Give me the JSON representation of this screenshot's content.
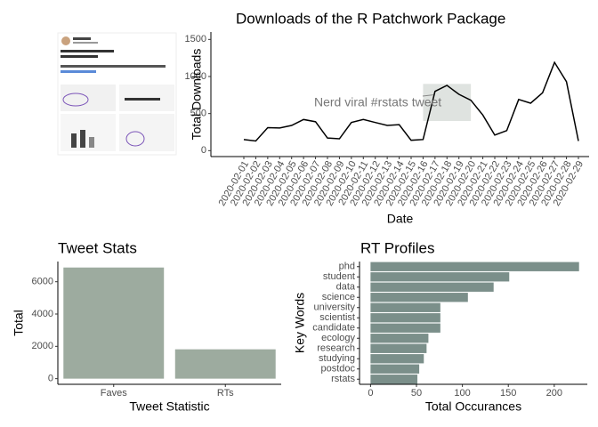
{
  "chart_data": [
    {
      "type": "line",
      "title": "Downloads of the R Patchwork Package",
      "xlabel": "Date",
      "ylabel": "Total Downloads",
      "x": [
        "2020-02-01",
        "2020-02-02",
        "2020-02-03",
        "2020-02-04",
        "2020-02-05",
        "2020-02-06",
        "2020-02-07",
        "2020-02-08",
        "2020-02-09",
        "2020-02-10",
        "2020-02-11",
        "2020-02-12",
        "2020-02-13",
        "2020-02-14",
        "2020-02-15",
        "2020-02-16",
        "2020-02-17",
        "2020-02-18",
        "2020-02-19",
        "2020-02-20",
        "2020-02-21",
        "2020-02-22",
        "2020-02-23",
        "2020-02-24",
        "2020-02-25",
        "2020-02-26",
        "2020-02-27",
        "2020-02-28",
        "2020-02-29"
      ],
      "values": [
        150,
        130,
        310,
        305,
        340,
        420,
        390,
        170,
        160,
        380,
        420,
        380,
        340,
        350,
        140,
        150,
        800,
        880,
        760,
        680,
        480,
        210,
        270,
        690,
        640,
        780,
        1190,
        930,
        130
      ],
      "color": "#000000",
      "ylim": [
        -80,
        1600
      ],
      "yticks": [
        0,
        500,
        1000,
        1500
      ],
      "annotation": "Nerd viral #rstats tweet",
      "highlight": {
        "x": [
          "2020-02-16",
          "2020-02-20"
        ],
        "y": [
          400,
          900
        ],
        "color": "#b8c2bb"
      }
    },
    {
      "type": "bar",
      "title": "Tweet Stats",
      "xlabel": "Tweet Statistic",
      "ylabel": "Total",
      "categories": [
        "Faves",
        "RTs"
      ],
      "values": [
        6880,
        1816
      ],
      "color": "#9dab9f",
      "ylim": [
        -350,
        7250
      ],
      "yticks": [
        0,
        2000,
        4000,
        6000
      ]
    },
    {
      "type": "barh",
      "title": "RT Profiles",
      "xlabel": "Total Occurances",
      "ylabel": "Key Words",
      "categories": [
        "phd",
        "student",
        "data",
        "science",
        "university",
        "scientist",
        "candidate",
        "ecology",
        "research",
        "studying",
        "postdoc",
        "rstats"
      ],
      "values": [
        227,
        151,
        134,
        106,
        76,
        76,
        76,
        63,
        61,
        58,
        53,
        51
      ],
      "color": "#7b8f8a",
      "xlim": [
        -12,
        236
      ],
      "xticks": [
        0,
        50,
        100,
        150,
        200
      ]
    }
  ]
}
